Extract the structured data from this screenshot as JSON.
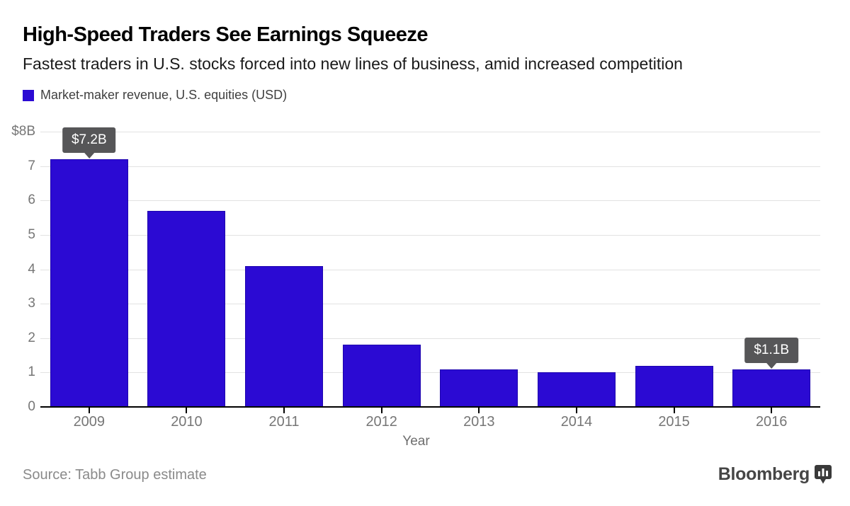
{
  "chart_data": {
    "type": "bar",
    "title": "High-Speed Traders See Earnings Squeeze",
    "subtitle": "Fastest traders in U.S. stocks forced into new lines of business, amid increased competition",
    "legend": {
      "label": "Market-maker revenue, U.S. equities (USD)",
      "position": "top-left"
    },
    "categories": [
      "2009",
      "2010",
      "2011",
      "2012",
      "2013",
      "2014",
      "2015",
      "2016"
    ],
    "series": [
      {
        "name": "Market-maker revenue, U.S. equities (USD)",
        "values": [
          7.2,
          5.7,
          4.1,
          1.8,
          1.1,
          1.0,
          1.2,
          1.1
        ]
      }
    ],
    "xlabel": "Year",
    "ylabel": "",
    "ylim": [
      0,
      8
    ],
    "yticks": [
      {
        "value": 8,
        "label": "$8B"
      },
      {
        "value": 7,
        "label": "7"
      },
      {
        "value": 6,
        "label": "6"
      },
      {
        "value": 5,
        "label": "5"
      },
      {
        "value": 4,
        "label": "4"
      },
      {
        "value": 3,
        "label": "3"
      },
      {
        "value": 2,
        "label": "2"
      },
      {
        "value": 1,
        "label": "1"
      },
      {
        "value": 0,
        "label": "0"
      }
    ],
    "grid": "horizontal",
    "annotations": [
      {
        "category": "2009",
        "label": "$7.2B"
      },
      {
        "category": "2016",
        "label": "$1.1B"
      }
    ],
    "colors": {
      "bar": "#2b0ad3",
      "bar_edge": "#1e04ae",
      "grid": "#e2e2e2",
      "axis_text": "#767676",
      "annotation_bg": "#565658",
      "annotation_text": "#ffffff"
    }
  },
  "footer": {
    "source": "Source: Tabb Group estimate",
    "brand": "Bloomberg"
  }
}
